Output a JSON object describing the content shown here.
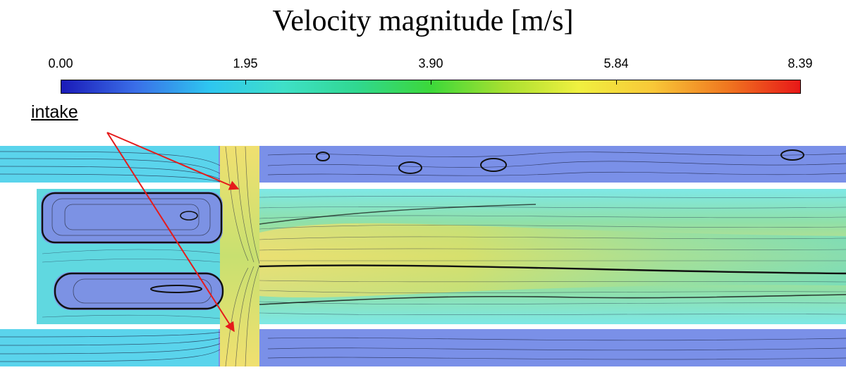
{
  "title": "Velocity magnitude [m/s]",
  "colorbar": {
    "ticks": [
      "0.00",
      "1.95",
      "3.90",
      "5.84",
      "8.39"
    ],
    "colors": [
      "#1a1ab8",
      "#2ec6f0",
      "#30d890",
      "#f0f040",
      "#e81818"
    ]
  },
  "annotation": {
    "label": "intake",
    "arrow_color": "#e51b1b"
  }
}
